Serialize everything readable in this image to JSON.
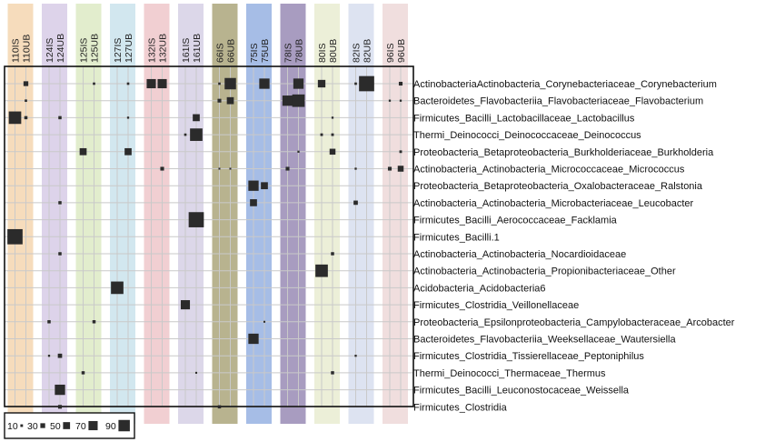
{
  "chart_data": {
    "type": "heatmap",
    "columns": [
      "110IS",
      "110UB",
      "124IS",
      "124UB",
      "125IS",
      "125UB",
      "127IS",
      "127UB",
      "132IS",
      "132UB",
      "161IS",
      "161UB",
      "66IS",
      "66UB",
      "75IS",
      "75UB",
      "78IS",
      "78UB",
      "80IS",
      "80UB",
      "82IS",
      "82UB",
      "96IS",
      "96UB"
    ],
    "groups": [
      {
        "color": "#f6dcbc"
      },
      {
        "color": "#ddd3ea"
      },
      {
        "color": "#e2edcd"
      },
      {
        "color": "#d2e7ef"
      },
      {
        "color": "#f1cfd2"
      },
      {
        "color": "#dcd7e9"
      },
      {
        "color": "#b8b38f"
      },
      {
        "color": "#a6bde6"
      },
      {
        "color": "#a89cc0"
      },
      {
        "color": "#ecefd8"
      },
      {
        "color": "#dde3f1"
      },
      {
        "color": "#f0dede"
      }
    ],
    "rows": [
      "ActinobacteriaActinobacteria_Corynebacteriaceae_Corynebacterium",
      "Bacteroidetes_Flavobacteriia_Flavobacteriaceae_Flavobacterium",
      "Firmicutes_Bacilli_Lactobacillaceae_Lactobacillus",
      "Thermi_Deinococci_Deinococcaceae_Deinococcus",
      "Proteobacteria_Betaproteobacteria_Burkholderiaceae_Burkholderia",
      "Actinobacteria_Actinobacteria_Micrococcaceae_Micrococcus",
      "Proteobacteria_Betaproteobacteria_Oxalobacteraceae_Ralstonia",
      "Actinobacteria_Actinobacteria_Microbacteriaceae_Leucobacter",
      "Firmicutes_Bacilli_Aerococcaceae_Facklamia",
      "Firmicutes_Bacilli.1",
      "Actinobacteria_Actinobacteria_Nocardioidaceae",
      "Actinobacteria_Actinobacteria_Propionibacteriaceae_Other",
      "Acidobacteria_Acidobacteria6",
      "Firmicutes_Clostridia_Veillonellaceae",
      "Proteobacteria_Epsilonproteobacteria_Campylobacteraceae_Arcobacter",
      "Bacteroidetes_Flavobacteriia_Weeksellaceae_Wautersiella",
      "Firmicutes_Clostridia_Tissierellaceae_Peptoniphilus",
      "Thermi_Deinococci_Thermaceae_Thermus",
      "Firmicutes_Bacilli_Leuconostocaceae_Weissella",
      "Firmicutes_Clostridia"
    ],
    "values": [
      [
        0,
        30,
        0,
        0,
        0,
        8,
        0,
        8,
        70,
        70,
        0,
        0,
        8,
        90,
        0,
        80,
        0,
        80,
        55,
        0,
        8,
        125,
        0,
        20
      ],
      [
        0,
        8,
        0,
        0,
        0,
        0,
        0,
        0,
        0,
        0,
        0,
        0,
        20,
        50,
        0,
        0,
        80,
        100,
        0,
        0,
        0,
        0,
        5,
        5
      ],
      [
        100,
        15,
        0,
        15,
        0,
        0,
        0,
        5,
        0,
        0,
        0,
        50,
        0,
        0,
        0,
        0,
        0,
        0,
        0,
        5,
        0,
        0,
        0,
        0
      ],
      [
        0,
        0,
        0,
        0,
        0,
        0,
        0,
        0,
        0,
        0,
        8,
        100,
        0,
        0,
        0,
        0,
        0,
        0,
        10,
        10,
        0,
        0,
        0,
        0
      ],
      [
        0,
        0,
        0,
        0,
        50,
        0,
        0,
        50,
        0,
        0,
        0,
        0,
        0,
        0,
        0,
        0,
        0,
        5,
        0,
        40,
        0,
        0,
        0,
        10
      ],
      [
        0,
        0,
        0,
        0,
        0,
        0,
        0,
        0,
        0,
        20,
        0,
        0,
        3,
        3,
        0,
        0,
        20,
        0,
        0,
        0,
        5,
        0,
        20,
        40
      ],
      [
        0,
        0,
        0,
        0,
        0,
        0,
        0,
        0,
        0,
        0,
        0,
        0,
        0,
        0,
        80,
        50,
        0,
        0,
        0,
        0,
        0,
        0,
        0,
        0
      ],
      [
        0,
        0,
        0,
        15,
        0,
        0,
        0,
        0,
        0,
        0,
        0,
        0,
        0,
        0,
        50,
        0,
        0,
        0,
        0,
        0,
        25,
        0,
        0,
        0
      ],
      [
        0,
        0,
        0,
        0,
        0,
        0,
        0,
        0,
        0,
        0,
        0,
        125,
        0,
        0,
        0,
        0,
        0,
        0,
        0,
        0,
        0,
        0,
        0,
        0
      ],
      [
        125,
        0,
        0,
        0,
        0,
        0,
        0,
        0,
        0,
        0,
        0,
        0,
        0,
        0,
        0,
        0,
        0,
        0,
        0,
        0,
        0,
        0,
        0,
        0
      ],
      [
        0,
        0,
        0,
        15,
        0,
        0,
        0,
        0,
        0,
        0,
        0,
        0,
        0,
        0,
        0,
        0,
        0,
        0,
        0,
        15,
        0,
        0,
        0,
        0
      ],
      [
        0,
        0,
        0,
        0,
        0,
        0,
        0,
        0,
        0,
        0,
        0,
        0,
        0,
        0,
        0,
        0,
        0,
        0,
        100,
        0,
        0,
        0,
        0,
        0
      ],
      [
        0,
        0,
        0,
        0,
        0,
        0,
        100,
        0,
        0,
        0,
        0,
        0,
        0,
        0,
        0,
        0,
        0,
        0,
        0,
        0,
        0,
        0,
        0,
        0
      ],
      [
        0,
        0,
        0,
        0,
        0,
        0,
        0,
        0,
        0,
        0,
        70,
        0,
        0,
        0,
        0,
        0,
        0,
        0,
        0,
        0,
        0,
        0,
        0,
        0
      ],
      [
        0,
        0,
        15,
        0,
        0,
        15,
        0,
        0,
        0,
        0,
        0,
        0,
        0,
        0,
        0,
        3,
        0,
        0,
        0,
        0,
        0,
        0,
        0,
        0
      ],
      [
        0,
        0,
        0,
        0,
        0,
        0,
        0,
        0,
        0,
        0,
        0,
        0,
        0,
        0,
        80,
        0,
        0,
        0,
        0,
        0,
        0,
        0,
        0,
        0
      ],
      [
        0,
        0,
        5,
        25,
        0,
        0,
        0,
        0,
        0,
        0,
        0,
        0,
        0,
        0,
        0,
        0,
        0,
        0,
        0,
        0,
        5,
        0,
        0,
        0
      ],
      [
        0,
        0,
        0,
        0,
        15,
        0,
        0,
        0,
        0,
        0,
        0,
        3,
        0,
        0,
        0,
        0,
        0,
        0,
        0,
        15,
        0,
        0,
        0,
        0
      ],
      [
        0,
        0,
        0,
        80,
        0,
        0,
        0,
        0,
        0,
        0,
        0,
        0,
        0,
        0,
        0,
        0,
        0,
        0,
        0,
        0,
        0,
        0,
        0,
        0
      ],
      [
        0,
        0,
        0,
        20,
        0,
        0,
        0,
        0,
        0,
        0,
        0,
        0,
        15,
        0,
        0,
        0,
        0,
        0,
        0,
        0,
        0,
        0,
        0,
        0
      ]
    ],
    "legend": {
      "values": [
        10,
        30,
        50,
        70,
        90
      ],
      "placement": "bottom-left"
    },
    "grid": true,
    "square_color": "#2b2b2b"
  }
}
